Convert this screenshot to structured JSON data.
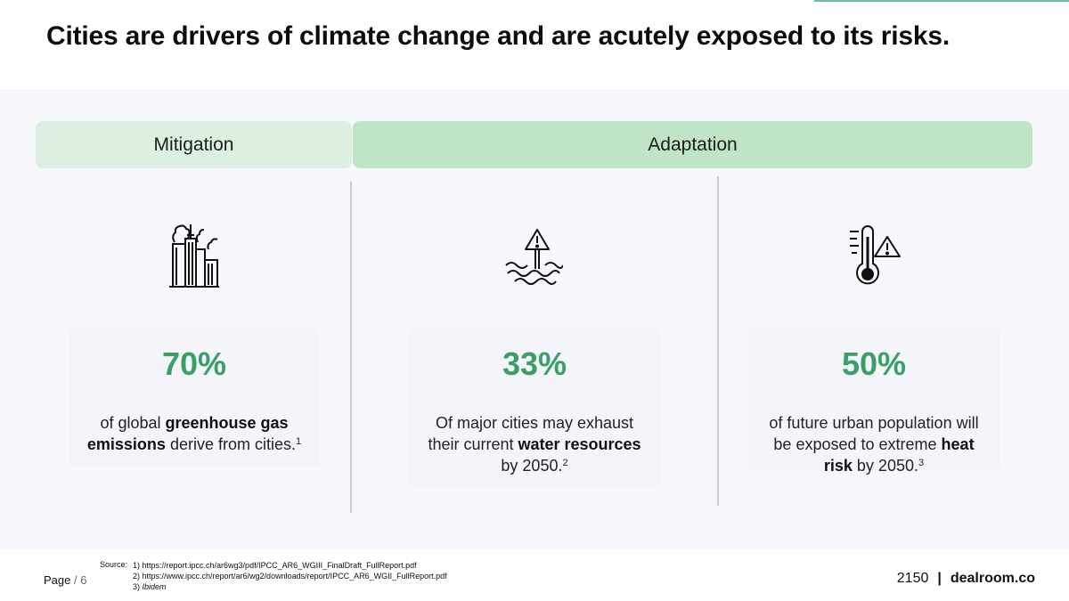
{
  "title": "Cities are drivers of climate change and are acutely exposed to its risks.",
  "tabs": {
    "mitigation": "Mitigation",
    "adaptation": "Adaptation"
  },
  "columns": [
    {
      "icon": "factory-pollution-icon",
      "stat": "70%",
      "desc_a": "of global ",
      "desc_b": "greenhouse gas emissions",
      "desc_c": " derive from cities.",
      "ref": "1"
    },
    {
      "icon": "flood-warning-icon",
      "stat": "33%",
      "desc_a": "Of major cities may exhaust their current ",
      "desc_b": "water resources",
      "desc_c": " by 2050.",
      "ref": "2"
    },
    {
      "icon": "thermometer-warning-icon",
      "stat": "50%",
      "desc_a": "of future urban population will be exposed to extreme ",
      "desc_b": "heat risk",
      "desc_c": " by 2050.",
      "ref": "3"
    }
  ],
  "footer": {
    "page_word": "Page",
    "page_sep": " / 6",
    "source_label": "Source:",
    "sources": [
      "1) https://report.ipcc.ch/ar6wg3/pdf/IPCC_AR6_WGIII_FinalDraft_FullReport.pdf",
      "2) https://www.ipcc.ch/report/ar6/wg2/downloads/report/IPCC_AR6_WGII_FullReport.pdf",
      "3) "
    ],
    "ibidem": "Ibidem",
    "brand_2150": "2150",
    "brand_sep": "|",
    "brand_dealroom": "dealroom.co"
  },
  "colors": {
    "accent_green": "#3a9f67",
    "tab_light": "#dcefe1",
    "tab_mid": "#bfe5c6",
    "panel_bg": "#f6f8fc"
  }
}
